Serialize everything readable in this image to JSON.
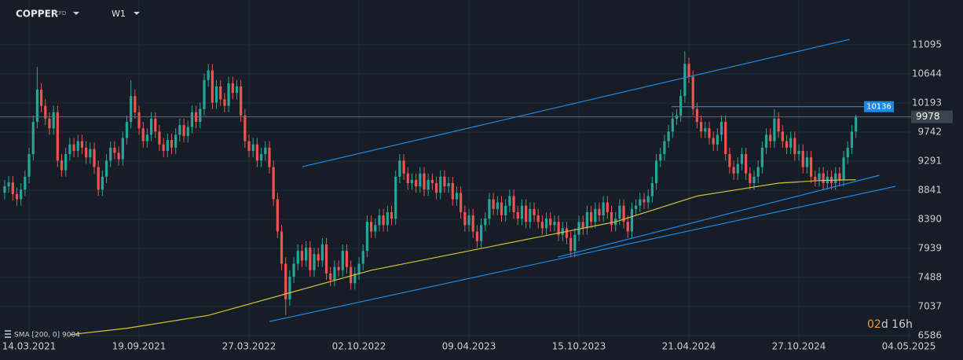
{
  "chart_data": {
    "type": "candlestick",
    "symbol": "COPPER",
    "instrument": "CFD",
    "timeframe": "W1",
    "up_color": "#26a69a",
    "down_color": "#ef5350",
    "grid": true,
    "xlim": [
      -1.14,
      235.3
    ],
    "ylim": [
      6427,
      11790
    ],
    "yticks": [
      11095,
      10644,
      10193,
      9742,
      9291,
      8841,
      8390,
      7939,
      7488,
      7037,
      6586
    ],
    "xticks": [
      {
        "value": 6,
        "label": "14.03.2021"
      },
      {
        "value": 33,
        "label": "19.09.2021"
      },
      {
        "value": 60,
        "label": "27.03.2022"
      },
      {
        "value": 87,
        "label": "02.10.2022"
      },
      {
        "value": 114,
        "label": "09.04.2023"
      },
      {
        "value": 141,
        "label": "15.10.2023"
      },
      {
        "value": 168,
        "label": "21.04.2024"
      },
      {
        "value": 195,
        "label": "27.10.2024"
      },
      {
        "value": 222,
        "label": "04.05.2025"
      }
    ],
    "x": [
      0,
      1,
      2,
      3,
      4,
      5,
      6,
      7,
      8,
      9,
      10,
      11,
      12,
      13,
      14,
      15,
      16,
      17,
      18,
      19,
      20,
      21,
      22,
      23,
      24,
      25,
      26,
      27,
      28,
      29,
      30,
      31,
      32,
      33,
      34,
      35,
      36,
      37,
      38,
      39,
      40,
      41,
      42,
      43,
      44,
      45,
      46,
      47,
      48,
      49,
      50,
      51,
      52,
      53,
      54,
      55,
      56,
      57,
      58,
      59,
      60,
      61,
      62,
      63,
      64,
      65,
      66,
      67,
      68,
      69,
      70,
      71,
      72,
      73,
      74,
      75,
      76,
      77,
      78,
      79,
      80,
      81,
      82,
      83,
      84,
      85,
      86,
      87,
      88,
      89,
      90,
      91,
      92,
      93,
      94,
      95,
      96,
      97,
      98,
      99,
      100,
      101,
      102,
      103,
      104,
      105,
      106,
      107,
      108,
      109,
      110,
      111,
      112,
      113,
      114,
      115,
      116,
      117,
      118,
      119,
      120,
      121,
      122,
      123,
      124,
      125,
      126,
      127,
      128,
      129,
      130,
      131,
      132,
      133,
      134,
      135,
      136,
      137,
      138,
      139,
      140,
      141,
      142,
      143,
      144,
      145,
      146,
      147,
      148,
      149,
      150,
      151,
      152,
      153,
      154,
      155,
      156,
      157,
      158,
      159,
      160,
      161,
      162,
      163,
      164,
      165,
      166,
      167,
      168,
      169,
      170,
      171,
      172,
      173,
      174,
      175,
      176,
      177,
      178,
      179,
      180,
      181,
      182,
      183,
      184,
      185,
      186,
      187,
      188,
      189,
      190,
      191,
      192,
      193,
      194,
      195,
      196,
      197,
      198,
      199,
      200,
      201,
      202,
      203,
      204,
      205,
      206,
      207,
      208,
      209
    ],
    "open": [
      8800,
      8900,
      8960,
      8780,
      8700,
      8850,
      9050,
      9400,
      9900,
      10400,
      10150,
      9950,
      9800,
      10050,
      9300,
      9150,
      9400,
      9550,
      9450,
      9600,
      9500,
      9350,
      9480,
      9200,
      8850,
      9050,
      9300,
      9500,
      9420,
      9320,
      9650,
      9900,
      10300,
      10050,
      9800,
      9600,
      9700,
      9950,
      9750,
      9550,
      9450,
      9620,
      9500,
      9700,
      9850,
      9680,
      9820,
      10050,
      9900,
      10100,
      10550,
      10700,
      10200,
      10450,
      10250,
      10150,
      10500,
      10350,
      10450,
      10000,
      9600,
      9450,
      9550,
      9300,
      9400,
      9500,
      9200,
      8700,
      8200,
      7700,
      7150,
      7500,
      7700,
      7900,
      7750,
      7950,
      7600,
      7850,
      7750,
      8000,
      7550,
      7450,
      7650,
      7600,
      7900,
      7650,
      7400,
      7550,
      7700,
      7900,
      8350,
      8200,
      8300,
      8450,
      8300,
      8500,
      8400,
      9050,
      9300,
      9100,
      8950,
      9000,
      8900,
      9100,
      8850,
      9000,
      8950,
      8800,
      9050,
      8900,
      8950,
      8700,
      8800,
      8500,
      8300,
      8450,
      8200,
      8050,
      8300,
      8400,
      8700,
      8550,
      8650,
      8450,
      8600,
      8750,
      8500,
      8400,
      8600,
      8350,
      8550,
      8450,
      8350,
      8250,
      8400,
      8300,
      8350,
      8150,
      8250,
      8100,
      7900,
      8150,
      8350,
      8250,
      8500,
      8350,
      8550,
      8450,
      8650,
      8500,
      8300,
      8400,
      8600,
      8350,
      8200,
      8550,
      8600,
      8700,
      8650,
      8750,
      8950,
      9300,
      9400,
      9600,
      9750,
      9950,
      10000,
      10300,
      10800,
      10600,
      10100,
      9900,
      9750,
      9800,
      9650,
      9550,
      9700,
      9900,
      9400,
      9200,
      9100,
      9250,
      9400,
      9100,
      8950,
      9050,
      9200,
      9500,
      9700,
      9600,
      9950,
      9750,
      9600,
      9500,
      9650,
      9400,
      9450,
      9200,
      9350,
      9050,
      9000,
      9100,
      8950,
      9050,
      8950,
      9100,
      9000,
      9350,
      9500,
      9750
    ],
    "high": [
      9000,
      9060,
      9060,
      8880,
      8950,
      9150,
      9500,
      10000,
      10750,
      10500,
      10250,
      10050,
      10150,
      10150,
      9400,
      9500,
      9650,
      9650,
      9700,
      9700,
      9600,
      9580,
      9580,
      9300,
      9150,
      9400,
      9600,
      9600,
      9520,
      9750,
      10000,
      10550,
      10400,
      10150,
      9900,
      9800,
      10050,
      10050,
      9850,
      9650,
      9720,
      9720,
      9800,
      9950,
      9950,
      9920,
      10150,
      10150,
      10200,
      10650,
      10800,
      10800,
      10550,
      10550,
      10350,
      10600,
      10600,
      10550,
      10550,
      10100,
      9700,
      9650,
      9650,
      9500,
      9600,
      9600,
      9300,
      8800,
      8300,
      7800,
      7600,
      7800,
      8000,
      8000,
      8050,
      8050,
      7950,
      7950,
      8100,
      8100,
      7650,
      7750,
      7750,
      8000,
      8000,
      7750,
      7650,
      7800,
      8000,
      8450,
      8450,
      8400,
      8550,
      8550,
      8600,
      8600,
      9150,
      9400,
      9400,
      9200,
      9100,
      9100,
      9200,
      9200,
      9100,
      9100,
      9050,
      9150,
      9150,
      9050,
      9050,
      8900,
      8900,
      8600,
      8550,
      8550,
      8300,
      8400,
      8500,
      8800,
      8800,
      8750,
      8750,
      8700,
      8850,
      8850,
      8600,
      8700,
      8700,
      8650,
      8650,
      8550,
      8450,
      8500,
      8500,
      8450,
      8450,
      8350,
      8350,
      8200,
      8250,
      8450,
      8450,
      8600,
      8600,
      8650,
      8650,
      8750,
      8750,
      8600,
      8500,
      8700,
      8700,
      8450,
      8650,
      8700,
      8800,
      8800,
      8850,
      9050,
      9400,
      9500,
      9700,
      9850,
      10050,
      10100,
      10400,
      11000,
      10900,
      10700,
      10200,
      10000,
      9900,
      9900,
      9750,
      9800,
      10000,
      10000,
      9500,
      9300,
      9350,
      9500,
      9500,
      9200,
      9150,
      9300,
      9600,
      9800,
      9800,
      10100,
      10050,
      9850,
      9700,
      9750,
      9750,
      9550,
      9550,
      9450,
      9450,
      9150,
      9200,
      9200,
      9150,
      9150,
      9200,
      9200,
      9450,
      9600,
      9850,
      10010
    ],
    "low": [
      8700,
      8800,
      8680,
      8600,
      8600,
      8750,
      8950,
      9300,
      9800,
      10050,
      9850,
      9700,
      9700,
      9200,
      9050,
      9050,
      9300,
      9350,
      9350,
      9400,
      9250,
      9250,
      9100,
      8750,
      8750,
      8950,
      9200,
      9320,
      9220,
      9220,
      9550,
      9800,
      9950,
      9700,
      9500,
      9500,
      9600,
      9650,
      9450,
      9350,
      9350,
      9400,
      9400,
      9600,
      9580,
      9580,
      9720,
      9800,
      9800,
      10000,
      10450,
      10100,
      10100,
      10150,
      10050,
      10050,
      10250,
      10250,
      9900,
      9500,
      9350,
      9350,
      9200,
      9200,
      9300,
      9100,
      8600,
      8100,
      7600,
      6900,
      7050,
      7400,
      7600,
      7650,
      7650,
      7500,
      7500,
      7650,
      7650,
      7450,
      7350,
      7350,
      7500,
      7500,
      7550,
      7300,
      7300,
      7450,
      7600,
      7800,
      8100,
      8100,
      8200,
      8200,
      8200,
      8300,
      8300,
      8950,
      9000,
      8850,
      8850,
      8800,
      8800,
      8750,
      8750,
      8850,
      8700,
      8700,
      8800,
      8800,
      8600,
      8600,
      8400,
      8200,
      8200,
      8100,
      7950,
      7950,
      8200,
      8300,
      8450,
      8450,
      8350,
      8350,
      8500,
      8400,
      8300,
      8300,
      8250,
      8250,
      8350,
      8250,
      8150,
      8150,
      8200,
      8200,
      8050,
      8050,
      8000,
      7800,
      7800,
      8050,
      8150,
      8150,
      8250,
      8250,
      8350,
      8350,
      8400,
      8200,
      8200,
      8300,
      8250,
      8100,
      8100,
      8450,
      8500,
      8550,
      8550,
      8650,
      8850,
      9200,
      9300,
      9500,
      9650,
      9850,
      9900,
      10200,
      10500,
      10000,
      9800,
      9650,
      9650,
      9550,
      9450,
      9450,
      9600,
      9300,
      9100,
      9000,
      9000,
      9150,
      9000,
      8850,
      8850,
      8950,
      9100,
      9400,
      9500,
      9500,
      9650,
      9500,
      9400,
      9400,
      9300,
      9300,
      9100,
      9100,
      8950,
      8900,
      8900,
      8850,
      8850,
      8850,
      8850,
      8900,
      8900,
      9250,
      9400,
      9650
    ],
    "close": [
      8900,
      8960,
      8780,
      8700,
      8850,
      9050,
      9400,
      9900,
      10400,
      10150,
      9950,
      9800,
      10050,
      9300,
      9150,
      9400,
      9550,
      9450,
      9600,
      9500,
      9350,
      9480,
      9200,
      8850,
      9050,
      9300,
      9500,
      9420,
      9320,
      9650,
      9900,
      10300,
      10050,
      9800,
      9600,
      9700,
      9950,
      9750,
      9550,
      9450,
      9620,
      9500,
      9700,
      9850,
      9680,
      9820,
      10050,
      9900,
      10100,
      10550,
      10700,
      10200,
      10450,
      10250,
      10150,
      10500,
      10350,
      10450,
      10000,
      9600,
      9450,
      9550,
      9300,
      9400,
      9500,
      9200,
      8700,
      8200,
      7700,
      7150,
      7500,
      7700,
      7900,
      7750,
      7950,
      7600,
      7850,
      7750,
      8000,
      7550,
      7450,
      7650,
      7600,
      7900,
      7650,
      7400,
      7550,
      7700,
      7900,
      8350,
      8200,
      8300,
      8450,
      8300,
      8500,
      8400,
      9050,
      9300,
      9100,
      8950,
      9000,
      8900,
      9100,
      8850,
      9000,
      8950,
      8800,
      9050,
      8900,
      8950,
      8700,
      8800,
      8500,
      8300,
      8450,
      8200,
      8050,
      8300,
      8400,
      8700,
      8550,
      8650,
      8450,
      8600,
      8750,
      8500,
      8400,
      8600,
      8350,
      8550,
      8450,
      8350,
      8250,
      8400,
      8300,
      8350,
      8150,
      8250,
      8100,
      7900,
      8150,
      8350,
      8250,
      8500,
      8350,
      8550,
      8450,
      8650,
      8500,
      8300,
      8400,
      8600,
      8350,
      8200,
      8550,
      8600,
      8700,
      8650,
      8750,
      8950,
      9300,
      9400,
      9600,
      9750,
      9950,
      10000,
      10300,
      10800,
      10600,
      10100,
      9900,
      9750,
      9800,
      9650,
      9550,
      9700,
      9900,
      9400,
      9200,
      9100,
      9250,
      9400,
      9100,
      8950,
      9050,
      9200,
      9500,
      9700,
      9600,
      9950,
      9750,
      9600,
      9500,
      9650,
      9400,
      9450,
      9200,
      9350,
      9050,
      9000,
      9100,
      8950,
      9050,
      8950,
      9100,
      9000,
      9350,
      9500,
      9750,
      9978
    ],
    "price_line_color": "#6b7480",
    "sma": {
      "label": "SMA [200, 0] 9004",
      "color": "#d9c33a",
      "x": [
        16,
        30,
        50,
        70,
        90,
        110,
        130,
        150,
        160,
        170,
        180,
        190,
        200,
        209
      ],
      "values": [
        6600,
        6700,
        6900,
        7250,
        7600,
        7850,
        8100,
        8350,
        8550,
        8750,
        8850,
        8950,
        8990,
        9004
      ]
    },
    "trendlines": [
      {
        "color": "#1e88e5",
        "x": [
          73.1,
          207.5
        ],
        "y": [
          9205,
          11180
        ]
      },
      {
        "color": "#1e88e5",
        "x": [
          65.0,
          218.7
        ],
        "y": [
          6804,
          8900
        ]
      },
      {
        "color": "#1e88e5",
        "x": [
          135.8,
          214.8
        ],
        "y": [
          7804,
          9072
        ]
      }
    ],
    "level": {
      "value": 10136,
      "x": [
        163.8,
        211
      ],
      "color": "#1e88e5"
    },
    "countdown_days": "02",
    "countdown_rest": "d 16h"
  }
}
